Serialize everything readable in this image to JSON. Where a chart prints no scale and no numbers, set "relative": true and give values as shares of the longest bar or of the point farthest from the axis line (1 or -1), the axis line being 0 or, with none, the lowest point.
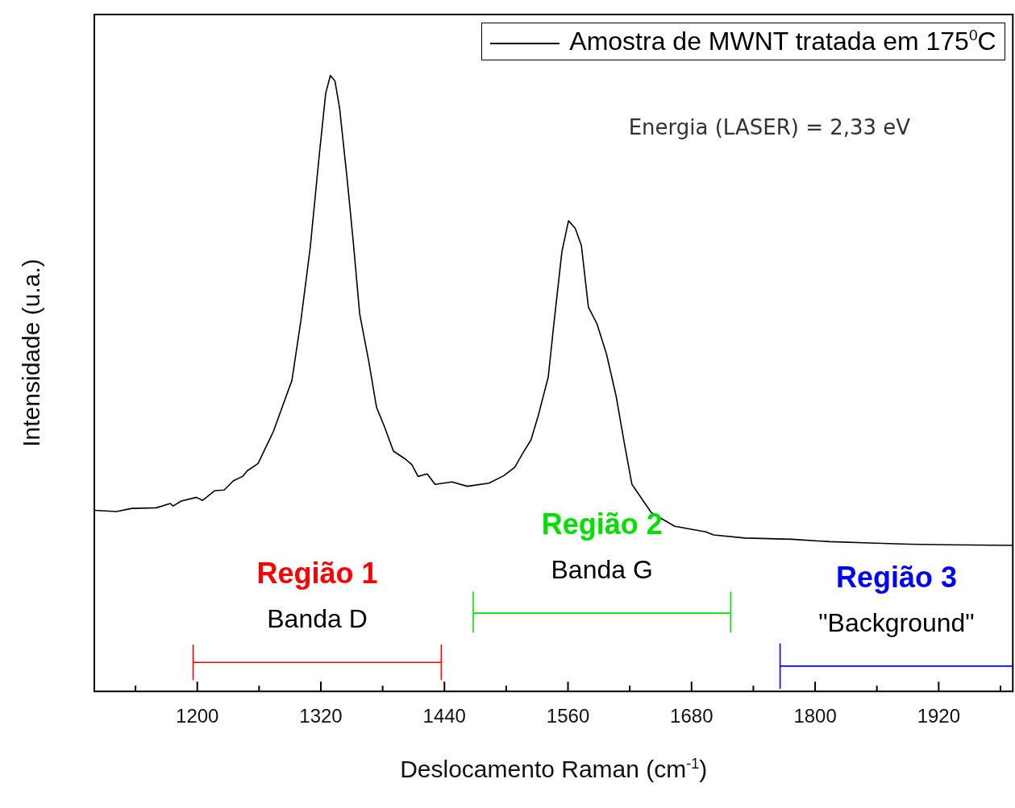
{
  "chart_data": {
    "type": "line",
    "xlabel": "Deslocamento Raman (cm$^{-1}$)",
    "ylabel": "Intensidade (u.a.)",
    "relative": true,
    "legend": "top right",
    "marker": "none",
    "xlim": [
      1100,
      1992
    ],
    "xticks": [
      {
        "value": 1140,
        "label": null
      },
      1200,
      {
        "value": 1260,
        "label": null
      },
      1320,
      {
        "value": 1380,
        "label": null
      },
      1440,
      {
        "value": 1500,
        "label": null
      },
      1560,
      {
        "value": 1620,
        "label": null
      },
      1680,
      {
        "value": 1740,
        "label": null
      },
      1800,
      {
        "value": 1860,
        "label": null
      },
      1920,
      {
        "value": 1980,
        "label": null
      }
    ],
    "series": [
      {
        "name": "Amostra de MWNT tratada em 175$^{0}$C",
        "color": "#000000",
        "x": [
          1100.5,
          1121.5,
          1136.4,
          1160.1,
          1173.8,
          1176.5,
          1184.3,
          1199.2,
          1205.2,
          1217.1,
          1226.1,
          1235.1,
          1244.0,
          1248.4,
          1259.0,
          1273.9,
          1291.9,
          1300.7,
          1309.7,
          1318.6,
          1324.7,
          1329.2,
          1333.7,
          1338.2,
          1345.7,
          1351.4,
          1357.7,
          1366.6,
          1374.1,
          1381.5,
          1390.5,
          1402.2,
          1408.4,
          1414.4,
          1423.3,
          1430.9,
          1447.3,
          1462.3,
          1483.2,
          1497.5,
          1508.4,
          1516.2,
          1524.0,
          1531.0,
          1540.8,
          1546.7,
          1554.1,
          1560.5,
          1567.0,
          1573.0,
          1579.8,
          1588.1,
          1597.5,
          1606.8,
          1614.6,
          1622.1,
          1641.0,
          1663.6,
          1693.9,
          1701.3,
          1731.7,
          1777.0,
          1814.5,
          1852.8,
          1890.2,
          1928.2,
          1991.8
        ],
        "values": [
          0.294,
          0.292,
          0.297,
          0.298,
          0.305,
          0.301,
          0.309,
          0.315,
          0.31,
          0.326,
          0.327,
          0.342,
          0.349,
          0.358,
          0.37,
          0.422,
          0.505,
          0.603,
          0.721,
          0.873,
          0.971,
          1,
          0.991,
          0.947,
          0.829,
          0.731,
          0.613,
          0.535,
          0.461,
          0.431,
          0.39,
          0.377,
          0.368,
          0.349,
          0.353,
          0.336,
          0.34,
          0.333,
          0.338,
          0.35,
          0.364,
          0.387,
          0.408,
          0.447,
          0.51,
          0.603,
          0.714,
          0.764,
          0.752,
          0.724,
          0.624,
          0.597,
          0.547,
          0.479,
          0.404,
          0.336,
          0.29,
          0.268,
          0.259,
          0.254,
          0.249,
          0.247,
          0.243,
          0.241,
          0.239,
          0.238,
          0.237
        ]
      },
      {
        "name": "Região 1",
        "color": "#ff0000",
        "x": [
          1196,
          1196,
          1196,
          1437,
          1437,
          1437
        ],
        "values": [
          0.019,
          0.075,
          0.047,
          0.047,
          0.075,
          0.019
        ]
      },
      {
        "name": "Região 2",
        "color": "#00e000",
        "x": [
          1468,
          1468,
          1468,
          1718,
          1718,
          1718
        ],
        "values": [
          0.096,
          0.161,
          0.127,
          0.127,
          0.161,
          0.096
        ]
      },
      {
        "name": "Região 3",
        "color": "#0000ff",
        "x": [
          1766,
          1766,
          1766,
          1992
        ],
        "values": [
          0.005,
          0.077,
          0.041,
          0.041
        ]
      }
    ],
    "annotations": [
      "Energia (LASER) = 2,33 eV",
      "Banda D",
      "Banda G",
      "\"Background\""
    ]
  }
}
